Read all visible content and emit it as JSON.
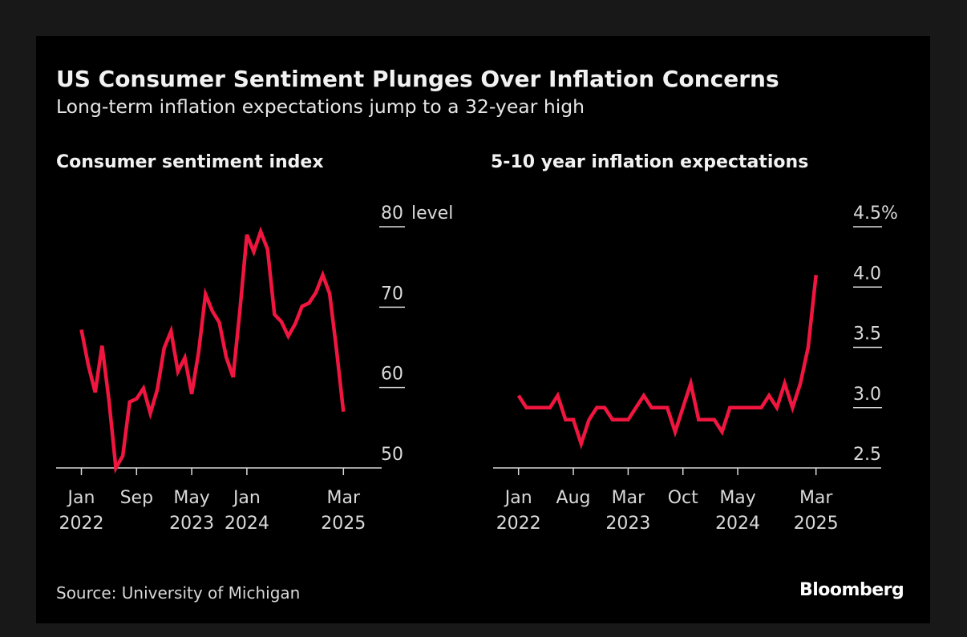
{
  "title": "US Consumer Sentiment Plunges Over Inflation Concerns",
  "subtitle": "Long-term inflation expectations jump to a 32-year high",
  "source": "Source: University of Michigan",
  "logo": "Bloomberg",
  "colors": {
    "line": "#f0163f",
    "background": "#000000",
    "axis": "#d9d9d9"
  },
  "chart_data": [
    {
      "type": "line",
      "title": "Consumer sentiment index",
      "unit_label": "level",
      "x_start": "2022-01",
      "x_end": "2025-03",
      "x_ticks": [
        {
          "month": "2022-01",
          "label": [
            "Jan",
            "2022"
          ]
        },
        {
          "month": "2022-09",
          "label": [
            "Sep",
            ""
          ]
        },
        {
          "month": "2023-05",
          "label": [
            "May",
            "2023"
          ]
        },
        {
          "month": "2024-01",
          "label": [
            "Jan",
            "2024"
          ]
        },
        {
          "month": "2025-03",
          "label": [
            "Mar",
            "2025"
          ]
        }
      ],
      "y_ticks": [
        "80",
        "70",
        "60",
        "50"
      ],
      "ylim": [
        50,
        80
      ],
      "grid": false,
      "values": [
        67.2,
        62.8,
        59.4,
        65.2,
        58.4,
        50.0,
        51.5,
        58.2,
        58.6,
        59.9,
        56.8,
        59.7,
        64.9,
        67.0,
        62.0,
        63.7,
        59.2,
        64.4,
        71.6,
        69.5,
        68.1,
        63.8,
        61.3,
        69.7,
        79.0,
        76.9,
        79.4,
        77.2,
        69.1,
        68.2,
        66.4,
        67.9,
        70.1,
        70.5,
        71.8,
        74.0,
        71.7,
        64.7,
        57.0
      ]
    },
    {
      "type": "line",
      "title": "5-10 year inflation expectations",
      "unit_label": "%",
      "x_start": "2022-01",
      "x_end": "2025-03",
      "x_ticks": [
        {
          "month": "2022-01",
          "label": [
            "Jan",
            "2022"
          ]
        },
        {
          "month": "2022-08",
          "label": [
            "Aug",
            ""
          ]
        },
        {
          "month": "2023-03",
          "label": [
            "Mar",
            "2023"
          ]
        },
        {
          "month": "2023-10",
          "label": [
            "Oct",
            ""
          ]
        },
        {
          "month": "2024-05",
          "label": [
            "May",
            "2024"
          ]
        },
        {
          "month": "2025-03",
          "label": [
            "Mar",
            "2025"
          ]
        }
      ],
      "y_ticks": [
        "4.5%",
        "4.0",
        "3.5",
        "3.0",
        "2.5"
      ],
      "ylim": [
        2.5,
        4.5
      ],
      "grid": false,
      "values": [
        3.1,
        3.0,
        3.0,
        3.0,
        3.0,
        3.1,
        2.9,
        2.9,
        2.7,
        2.9,
        3.0,
        3.0,
        2.9,
        2.9,
        2.9,
        3.0,
        3.1,
        3.0,
        3.0,
        3.0,
        2.8,
        3.0,
        3.2,
        2.9,
        2.9,
        2.9,
        2.8,
        3.0,
        3.0,
        3.0,
        3.0,
        3.0,
        3.1,
        3.0,
        3.2,
        3.0,
        3.2,
        3.5,
        4.1
      ]
    }
  ]
}
